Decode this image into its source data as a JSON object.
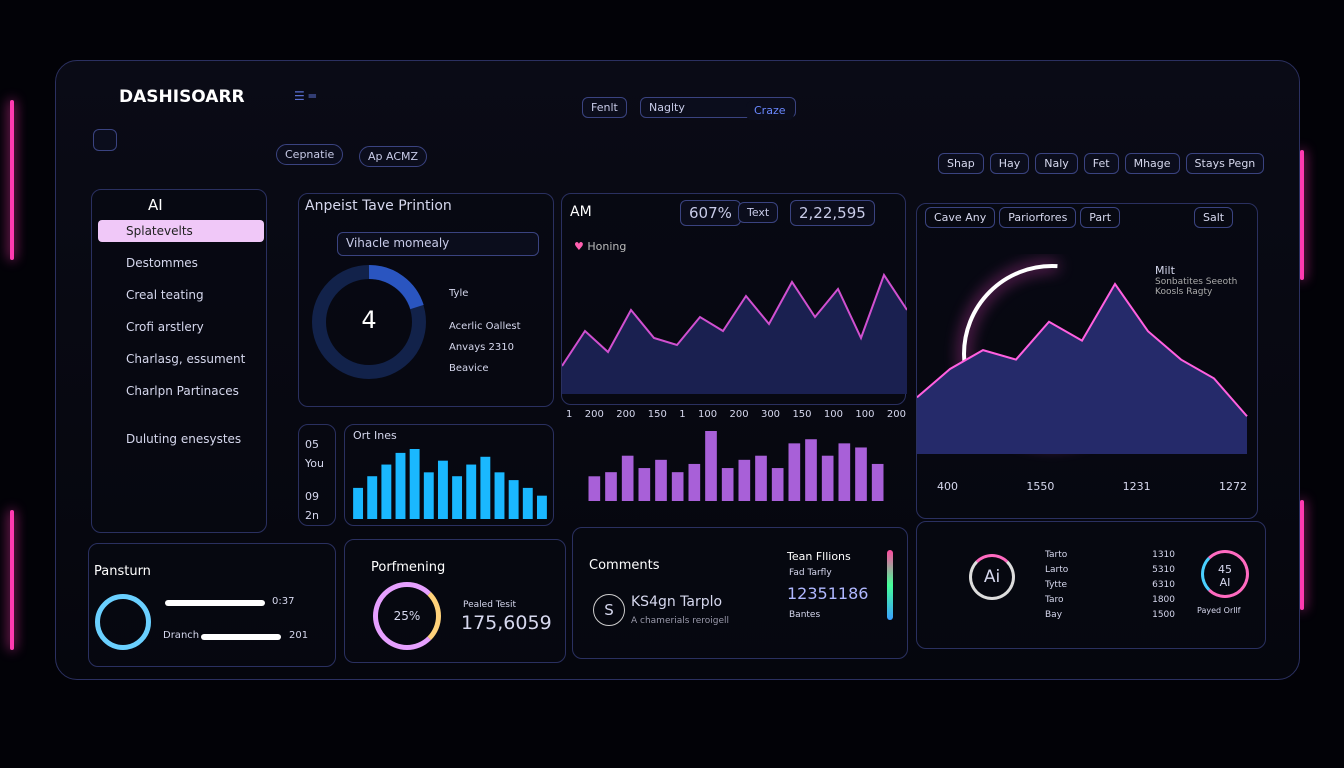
{
  "header": {
    "brand": "DASHISOARR",
    "center_buttons": [
      "Fenlt",
      "Naglty",
      "Craze"
    ],
    "tabs": [
      "Cepnatie",
      "Ap ACMZ"
    ],
    "right_buttons": [
      "Shap",
      "Hay",
      "Naly",
      "Fet",
      "Mhage",
      "Stays Pegn"
    ]
  },
  "sidebar": {
    "title": "AI",
    "items": [
      "Splatevelts",
      "Destommes",
      "Creal teating",
      "Crofi arstlery",
      "Charlasg, essument",
      "Charlpn Partinaces",
      "Duluting enesystes"
    ]
  },
  "panel_search": {
    "title": "Anpeist Tave Printion",
    "search": "Vihacle momealy",
    "center": "4",
    "labels": [
      "Tyle",
      "Acerlic Oallest",
      "Anvays 2310",
      "Beavice"
    ]
  },
  "panel_area": {
    "title": "AM",
    "stat1": "607%",
    "button": "Text",
    "stat2": "2,22,595",
    "legend": "Honing",
    "values": [
      20,
      45,
      30,
      60,
      40,
      35,
      55,
      45,
      70,
      50,
      80,
      55,
      75,
      40,
      85,
      60
    ],
    "x_labels": [
      "1",
      "200",
      "200",
      "150",
      "1",
      "100",
      "200",
      "300",
      "150",
      "100",
      "100",
      "200"
    ]
  },
  "mini_stats": [
    "05",
    "You",
    "09",
    "2n"
  ],
  "bars_cyan": {
    "title": "Ort Ines",
    "values": [
      40,
      55,
      70,
      85,
      90,
      60,
      75,
      55,
      70,
      80,
      60,
      50,
      40,
      30
    ]
  },
  "bars_purple": {
    "values": [
      30,
      35,
      55,
      40,
      50,
      35,
      45,
      85,
      40,
      50,
      55,
      40,
      70,
      75,
      55,
      70,
      65,
      45
    ]
  },
  "panel_right": {
    "buttons": [
      "Cave Any",
      "Pariorfores",
      "Part",
      "Salt"
    ],
    "legend": [
      "Milt",
      "Sonbatites Seeoth",
      "Koosls Ragty"
    ],
    "values": [
      30,
      45,
      55,
      50,
      70,
      60,
      90,
      65,
      50,
      40,
      20
    ],
    "stats": [
      "400",
      "1550",
      "1231",
      "1272"
    ]
  },
  "bottom": {
    "pansturn": {
      "title": "Pansturn",
      "label": "Dranch",
      "values_text": [
        "0:37",
        "201"
      ]
    },
    "perf": {
      "title": "Porfmening",
      "ring": "25%",
      "label": "Pealed Tesit",
      "value": "175,6059"
    },
    "comments": {
      "title": "Comments",
      "icon": "S",
      "name": "KS4gn Tarplo",
      "sub": "A chamerials reroigell"
    },
    "team": {
      "title": "Tean Fllions",
      "sub": "Fad Tarfly",
      "value": "12351186",
      "foot": "Bantes"
    },
    "ai": {
      "badge": "Ai",
      "rows": [
        [
          "Tarto",
          "1310"
        ],
        [
          "Larto",
          "5310"
        ],
        [
          "Tytte",
          "6310"
        ],
        [
          "Taro",
          "1800"
        ],
        [
          "Bay",
          "1500"
        ]
      ],
      "ring": "45 AI",
      "foot": "Payed Orllf"
    }
  }
}
